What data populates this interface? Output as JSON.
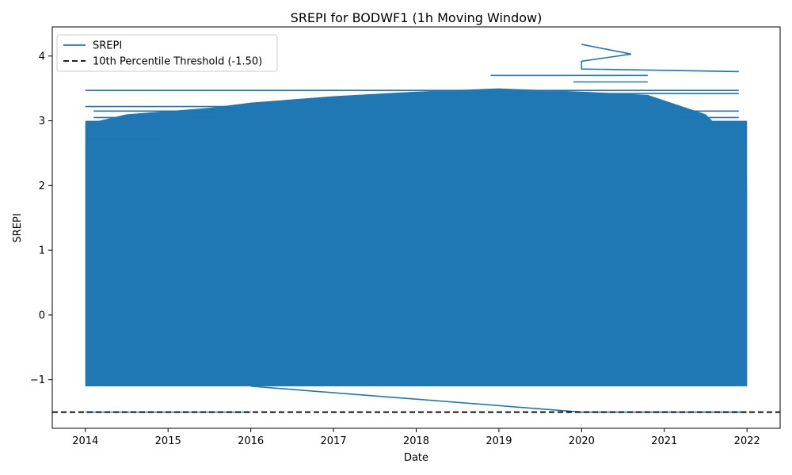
{
  "chart_data": {
    "type": "line",
    "title": "SREPI for BODWF1 (1h Moving Window)",
    "xlabel": "Date",
    "ylabel": "SREPI",
    "x_ticks": [
      "2014",
      "2015",
      "2016",
      "2017",
      "2018",
      "2019",
      "2020",
      "2021",
      "2022"
    ],
    "y_ticks": [
      "−1",
      "0",
      "1",
      "2",
      "3",
      "4"
    ],
    "xlim": [
      2013.6,
      2022.4
    ],
    "ylim": [
      -1.75,
      4.45
    ],
    "grid": false,
    "legend_position": "top-left",
    "series": [
      {
        "name": "SREPI",
        "color": "#1f77b4",
        "band": {
          "x_start": 2014.0,
          "x_end": 2022.0,
          "y_min": -1.1,
          "y_max": 3.0
        },
        "envelope_top": [
          {
            "x": 2014.0,
            "y": 2.95
          },
          {
            "x": 2014.5,
            "y": 3.1
          },
          {
            "x": 2015.5,
            "y": 3.2
          },
          {
            "x": 2016.0,
            "y": 3.28
          },
          {
            "x": 2017.0,
            "y": 3.38
          },
          {
            "x": 2018.0,
            "y": 3.45
          },
          {
            "x": 2019.0,
            "y": 3.5
          },
          {
            "x": 2020.0,
            "y": 3.45
          },
          {
            "x": 2020.8,
            "y": 3.4
          },
          {
            "x": 2021.5,
            "y": 3.1
          },
          {
            "x": 2021.9,
            "y": 2.6
          },
          {
            "x": 2022.0,
            "y": 2.0
          }
        ],
        "horizontal_segments": [
          {
            "x1": 2014.0,
            "x2": 2021.9,
            "y": 3.47
          },
          {
            "x1": 2014.0,
            "x2": 2020.8,
            "y": 3.22
          },
          {
            "x1": 2014.1,
            "x2": 2021.9,
            "y": 3.15
          },
          {
            "x1": 2014.1,
            "x2": 2021.9,
            "y": 3.05
          },
          {
            "x1": 2014.0,
            "x2": 2021.9,
            "y": 2.95
          },
          {
            "x1": 2014.0,
            "x2": 2014.9,
            "y": 2.82
          },
          {
            "x1": 2014.0,
            "x2": 2014.9,
            "y": 2.72
          },
          {
            "x1": 2014.0,
            "x2": 2021.9,
            "y": 2.62
          },
          {
            "x1": 2014.0,
            "x2": 2014.85,
            "y": 2.55
          },
          {
            "x1": 2014.0,
            "x2": 2021.9,
            "y": 2.45
          },
          {
            "x1": 2014.3,
            "x2": 2014.8,
            "y": 2.35
          },
          {
            "x1": 2014.1,
            "x2": 2014.4,
            "y": 2.27
          },
          {
            "x1": 2021.4,
            "x2": 2021.95,
            "y": 2.25
          },
          {
            "x1": 2019.9,
            "x2": 2020.8,
            "y": 3.6
          },
          {
            "x1": 2018.9,
            "x2": 2020.8,
            "y": 3.7
          },
          {
            "x1": 2019.2,
            "x2": 2021.9,
            "y": 3.42
          }
        ],
        "spikes": [
          {
            "x": 2020.0,
            "y": 4.18
          },
          {
            "x": 2020.6,
            "y": 4.03
          },
          {
            "x": 2020.0,
            "y": 3.92
          },
          {
            "x": 2020.0,
            "y": 3.8
          },
          {
            "x": 2021.9,
            "y": 3.76
          }
        ],
        "floor_line": [
          {
            "x": 2016.0,
            "y": -1.1
          },
          {
            "x": 2020.0,
            "y": -1.5
          },
          {
            "x": 2022.0,
            "y": -1.5
          }
        ]
      },
      {
        "name": "10th Percentile Threshold (-1.50)",
        "color": "#000000",
        "style": "dashed",
        "y": -1.5
      }
    ]
  }
}
